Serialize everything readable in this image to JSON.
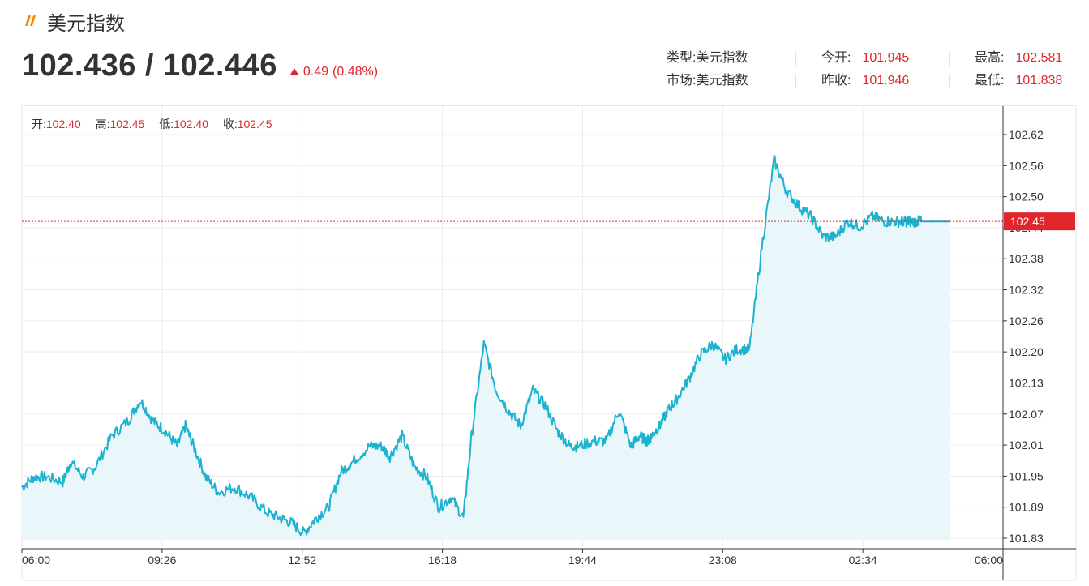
{
  "header": {
    "title": "美元指数",
    "price": "102.436 / 102.446",
    "change": "0.49",
    "change_pct": "(0.48%)",
    "colors": {
      "up": "#e0262b",
      "logo": "#f08a00",
      "line": "#1cb3d0",
      "fill": "#e9f7fa"
    }
  },
  "stats": {
    "type_label": "类型:",
    "type_value": "美元指数",
    "market_label": "市场:",
    "market_value": "美元指数",
    "open_label": "今开:",
    "open_value": "101.945",
    "prev_close_label": "昨收:",
    "prev_close_value": "101.946",
    "high_label": "最高:",
    "high_value": "102.581",
    "low_label": "最低:",
    "low_value": "101.838"
  },
  "ohlc": {
    "open_label": "开:",
    "open_value": "102.40",
    "high_label": "高:",
    "high_value": "102.45",
    "low_label": "低:",
    "low_value": "102.40",
    "close_label": "收:",
    "close_value": "102.45"
  },
  "chart_data": {
    "type": "area",
    "title": "",
    "xlabel": "",
    "ylabel": "",
    "x_ticks": [
      "06:00",
      "09:26",
      "12:52",
      "16:18",
      "19:44",
      "23:08",
      "02:34",
      "06:00"
    ],
    "y_ticks": [
      "102.62",
      "102.56",
      "102.50",
      "102.44",
      "102.38",
      "102.32",
      "102.26",
      "102.20",
      "102.13",
      "102.07",
      "102.01",
      "101.95",
      "101.89",
      "101.83"
    ],
    "ylim": [
      101.83,
      102.62
    ],
    "x_range_hours": [
      0,
      24
    ],
    "current_price_label": "102.45",
    "current_price": 102.45,
    "grid": true,
    "series": [
      {
        "values_x_hours": [
          0.0,
          0.3,
          0.6,
          1.0,
          1.2,
          1.5,
          1.8,
          2.2,
          2.6,
          2.9,
          3.2,
          3.5,
          3.8,
          4.0,
          4.2,
          4.5,
          4.8,
          5.2,
          5.6,
          6.0,
          6.3,
          6.6,
          6.9,
          7.2,
          7.5,
          7.8,
          8.1,
          8.5,
          8.8,
          9.0,
          9.3,
          9.6,
          9.9,
          10.2,
          10.5,
          10.8,
          11.0,
          11.3,
          11.6,
          11.9,
          12.2,
          12.5,
          12.8,
          13.1,
          13.4,
          13.6,
          14.0,
          14.3,
          14.6,
          14.9,
          15.1,
          15.3,
          15.4,
          15.6,
          15.8,
          16.0,
          16.3,
          16.6,
          16.9,
          17.2,
          17.5,
          17.8,
          18.1,
          18.4,
          18.7,
          19.0,
          19.3,
          19.6,
          19.9,
          20.2,
          20.5,
          20.8,
          21.1,
          21.4,
          21.6,
          21.7,
          21.9,
          22.0,
          22.1,
          22.3,
          22.4,
          22.5,
          22.6,
          22.7
        ],
        "values": [
          101.93,
          101.95,
          101.95,
          101.94,
          101.98,
          101.95,
          101.97,
          102.03,
          102.06,
          102.1,
          102.06,
          102.04,
          102.01,
          102.05,
          102.01,
          101.95,
          101.92,
          101.93,
          101.91,
          101.88,
          101.87,
          101.86,
          101.84,
          101.87,
          101.89,
          101.96,
          101.98,
          102.01,
          102.01,
          101.99,
          102.03,
          101.97,
          101.95,
          101.89,
          101.91,
          101.87,
          102.03,
          102.21,
          102.12,
          102.08,
          102.05,
          102.12,
          102.09,
          102.04,
          102.01,
          102.01,
          102.02,
          102.02,
          102.08,
          102.01,
          102.03,
          102.02,
          102.03,
          102.05,
          102.08,
          102.1,
          102.14,
          102.19,
          102.21,
          102.18,
          102.2,
          102.2,
          102.4,
          102.57,
          102.51,
          102.48,
          102.46,
          102.42,
          102.42,
          102.45,
          102.44,
          102.46,
          102.45,
          102.45,
          102.45,
          102.45,
          102.45,
          102.45,
          102.45,
          102.45,
          102.45,
          102.45,
          102.45,
          102.45
        ]
      }
    ]
  }
}
